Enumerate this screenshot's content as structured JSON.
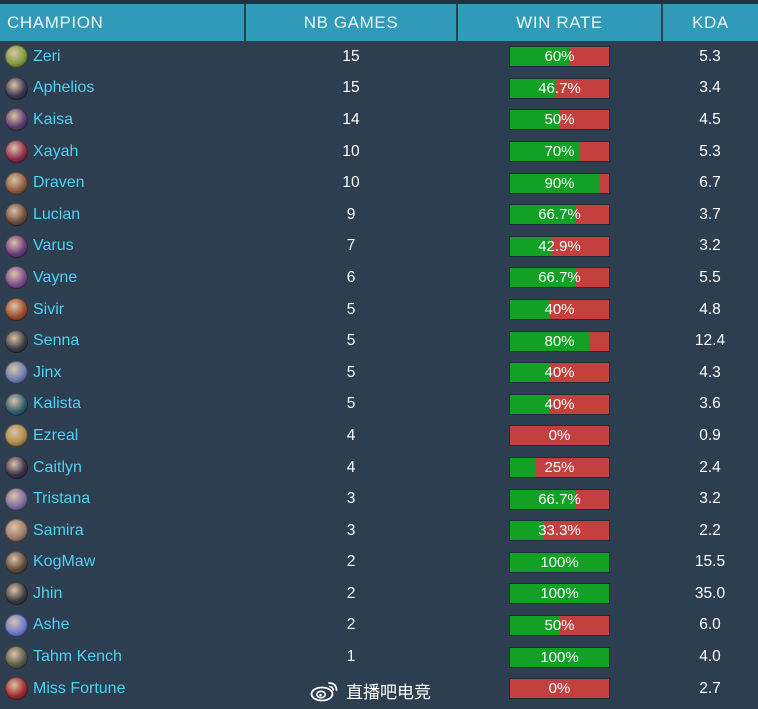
{
  "table": {
    "headers": {
      "champion": "CHAMPION",
      "games": "NB GAMES",
      "winrate": "WIN RATE",
      "kda": "KDA"
    },
    "rows": [
      {
        "champion": "Zeri",
        "games": "15",
        "winrate": "60%",
        "winrate_value": 60,
        "kda": "5.3",
        "icon": "zeri-portrait-icon",
        "color": "#7c9a3e"
      },
      {
        "champion": "Aphelios",
        "games": "15",
        "winrate": "46.7%",
        "winrate_value": 46.7,
        "kda": "3.4",
        "icon": "aphelios-portrait-icon",
        "color": "#3a3550"
      },
      {
        "champion": "Kaisa",
        "games": "14",
        "winrate": "50%",
        "winrate_value": 50,
        "kda": "4.5",
        "icon": "kaisa-portrait-icon",
        "color": "#5b3a6e"
      },
      {
        "champion": "Xayah",
        "games": "10",
        "winrate": "70%",
        "winrate_value": 70,
        "kda": "5.3",
        "icon": "xayah-portrait-icon",
        "color": "#8e2a4a"
      },
      {
        "champion": "Draven",
        "games": "10",
        "winrate": "90%",
        "winrate_value": 90,
        "kda": "6.7",
        "icon": "draven-portrait-icon",
        "color": "#8a5a3a"
      },
      {
        "champion": "Lucian",
        "games": "9",
        "winrate": "66.7%",
        "winrate_value": 66.7,
        "kda": "3.7",
        "icon": "lucian-portrait-icon",
        "color": "#6e4a3a"
      },
      {
        "champion": "Varus",
        "games": "7",
        "winrate": "42.9%",
        "winrate_value": 42.9,
        "kda": "3.2",
        "icon": "varus-portrait-icon",
        "color": "#6a3a7a"
      },
      {
        "champion": "Vayne",
        "games": "6",
        "winrate": "66.7%",
        "winrate_value": 66.7,
        "kda": "5.5",
        "icon": "vayne-portrait-icon",
        "color": "#7a4a8e"
      },
      {
        "champion": "Sivir",
        "games": "5",
        "winrate": "40%",
        "winrate_value": 40,
        "kda": "4.8",
        "icon": "sivir-portrait-icon",
        "color": "#9a4a2a"
      },
      {
        "champion": "Senna",
        "games": "5",
        "winrate": "80%",
        "winrate_value": 80,
        "kda": "12.4",
        "icon": "senna-portrait-icon",
        "color": "#3a3a44"
      },
      {
        "champion": "Jinx",
        "games": "5",
        "winrate": "40%",
        "winrate_value": 40,
        "kda": "4.3",
        "icon": "jinx-portrait-icon",
        "color": "#6a7ab0"
      },
      {
        "champion": "Kalista",
        "games": "5",
        "winrate": "40%",
        "winrate_value": 40,
        "kda": "3.6",
        "icon": "kalista-portrait-icon",
        "color": "#2a5a6e"
      },
      {
        "champion": "Ezreal",
        "games": "4",
        "winrate": "0%",
        "winrate_value": 0,
        "kda": "0.9",
        "icon": "ezreal-portrait-icon",
        "color": "#b08a4a"
      },
      {
        "champion": "Caitlyn",
        "games": "4",
        "winrate": "25%",
        "winrate_value": 25,
        "kda": "2.4",
        "icon": "caitlyn-portrait-icon",
        "color": "#3a3048"
      },
      {
        "champion": "Tristana",
        "games": "3",
        "winrate": "66.7%",
        "winrate_value": 66.7,
        "kda": "3.2",
        "icon": "tristana-portrait-icon",
        "color": "#7a6aa0"
      },
      {
        "champion": "Samira",
        "games": "3",
        "winrate": "33.3%",
        "winrate_value": 33.3,
        "kda": "2.2",
        "icon": "samira-portrait-icon",
        "color": "#a07a6a"
      },
      {
        "champion": "KogMaw",
        "games": "2",
        "winrate": "100%",
        "winrate_value": 100,
        "kda": "15.5",
        "icon": "kogmaw-portrait-icon",
        "color": "#5a4a3a"
      },
      {
        "champion": "Jhin",
        "games": "2",
        "winrate": "100%",
        "winrate_value": 100,
        "kda": "35.0",
        "icon": "jhin-portrait-icon",
        "color": "#3a3a3e"
      },
      {
        "champion": "Ashe",
        "games": "2",
        "winrate": "50%",
        "winrate_value": 50,
        "kda": "6.0",
        "icon": "ashe-portrait-icon",
        "color": "#6a7ad0"
      },
      {
        "champion": "Tahm Kench",
        "games": "1",
        "winrate": "100%",
        "winrate_value": 100,
        "kda": "4.0",
        "icon": "tahm-kench-portrait-icon",
        "color": "#5a5a48"
      },
      {
        "champion": "Miss Fortune",
        "games": "",
        "winrate": "0%",
        "winrate_value": 0,
        "kda": "2.7",
        "icon": "miss-fortune-portrait-icon",
        "color": "#a02a2a"
      }
    ]
  },
  "watermark": {
    "text": "直播吧电竞",
    "icon": "weibo-logo-icon"
  },
  "colors": {
    "header": "#2f9bb8",
    "background": "#2c3e50",
    "champion_text": "#4fd2f2",
    "win": "#12a025",
    "loss": "#c4403f"
  }
}
